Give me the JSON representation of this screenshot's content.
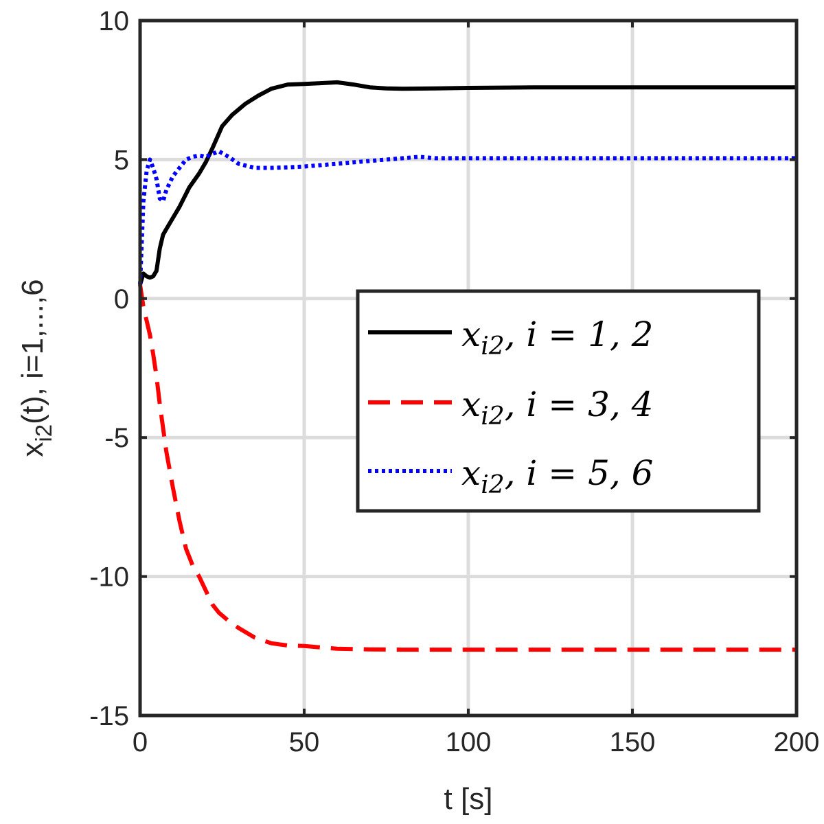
{
  "chart_data": {
    "type": "line",
    "xlabel": "t [s]",
    "ylabel_main": "x",
    "ylabel_sub": "i2",
    "ylabel_rest": "(t), i=1,...,6",
    "xlim": [
      0,
      200
    ],
    "ylim": [
      -15,
      10
    ],
    "xticks": [
      0,
      50,
      100,
      150,
      200
    ],
    "xtick_labels": [
      "0",
      "50",
      "100",
      "150",
      "200"
    ],
    "yticks": [
      -15,
      -10,
      -5,
      0,
      5,
      10
    ],
    "ytick_labels": [
      "-15",
      "-10",
      "-5",
      "0",
      "5",
      "10"
    ],
    "grid": true,
    "legend_position": "right-center",
    "series": [
      {
        "name": "x_{i2},  i = 1, 2",
        "legend_label": "x_{i2},  i = 1, 2",
        "color": "#000000",
        "style": "solid",
        "x": [
          0,
          1,
          2,
          3,
          4,
          5,
          6,
          7,
          8,
          10,
          12,
          15,
          18,
          20,
          22,
          25,
          28,
          32,
          36,
          40,
          45,
          50,
          55,
          60,
          65,
          70,
          75,
          80,
          90,
          100,
          120,
          150,
          180,
          200
        ],
        "y": [
          0.5,
          0.9,
          0.8,
          0.75,
          0.8,
          1.0,
          1.8,
          2.3,
          2.5,
          2.9,
          3.3,
          4.0,
          4.5,
          4.9,
          5.4,
          6.2,
          6.6,
          7.0,
          7.3,
          7.55,
          7.7,
          7.72,
          7.75,
          7.78,
          7.7,
          7.6,
          7.56,
          7.55,
          7.56,
          7.58,
          7.6,
          7.6,
          7.6,
          7.6
        ]
      },
      {
        "name": "x_{i2},  i = 3, 4",
        "legend_label": "x_{i2},  i = 3, 4",
        "color": "#ff0000",
        "style": "dashed",
        "x": [
          0,
          1,
          2,
          3,
          4,
          5,
          6,
          8,
          10,
          12,
          14,
          16,
          18,
          20,
          22,
          24,
          27,
          30,
          35,
          40,
          45,
          50,
          55,
          60,
          70,
          80,
          100,
          150,
          200
        ],
        "y": [
          0.5,
          -0.3,
          -0.8,
          -1.3,
          -2.0,
          -2.8,
          -3.8,
          -5.5,
          -6.8,
          -8.0,
          -9.0,
          -9.6,
          -10.0,
          -10.5,
          -11.0,
          -11.3,
          -11.6,
          -11.85,
          -12.2,
          -12.4,
          -12.48,
          -12.5,
          -12.55,
          -12.6,
          -12.62,
          -12.63,
          -12.63,
          -12.63,
          -12.63
        ]
      },
      {
        "name": "x_{i2},  i = 5, 6",
        "legend_label": "x_{i2},  i = 5, 6",
        "color": "#0000ff",
        "style": "dotted",
        "x": [
          0,
          0.5,
          1,
          2,
          3,
          4,
          5,
          6,
          7,
          8,
          10,
          12,
          14,
          16,
          18,
          20,
          22,
          24,
          27,
          30,
          35,
          40,
          45,
          50,
          55,
          60,
          65,
          70,
          75,
          80,
          85,
          90,
          100,
          120,
          150,
          200
        ],
        "y": [
          0.5,
          2.0,
          3.5,
          4.6,
          5.0,
          4.7,
          4.3,
          3.6,
          3.5,
          3.9,
          4.4,
          4.7,
          5.0,
          5.1,
          5.15,
          5.1,
          5.2,
          5.3,
          5.1,
          4.85,
          4.7,
          4.7,
          4.72,
          4.75,
          4.8,
          4.85,
          4.9,
          4.95,
          5.0,
          5.05,
          5.1,
          5.05,
          5.05,
          5.05,
          5.05,
          5.05
        ]
      }
    ]
  }
}
